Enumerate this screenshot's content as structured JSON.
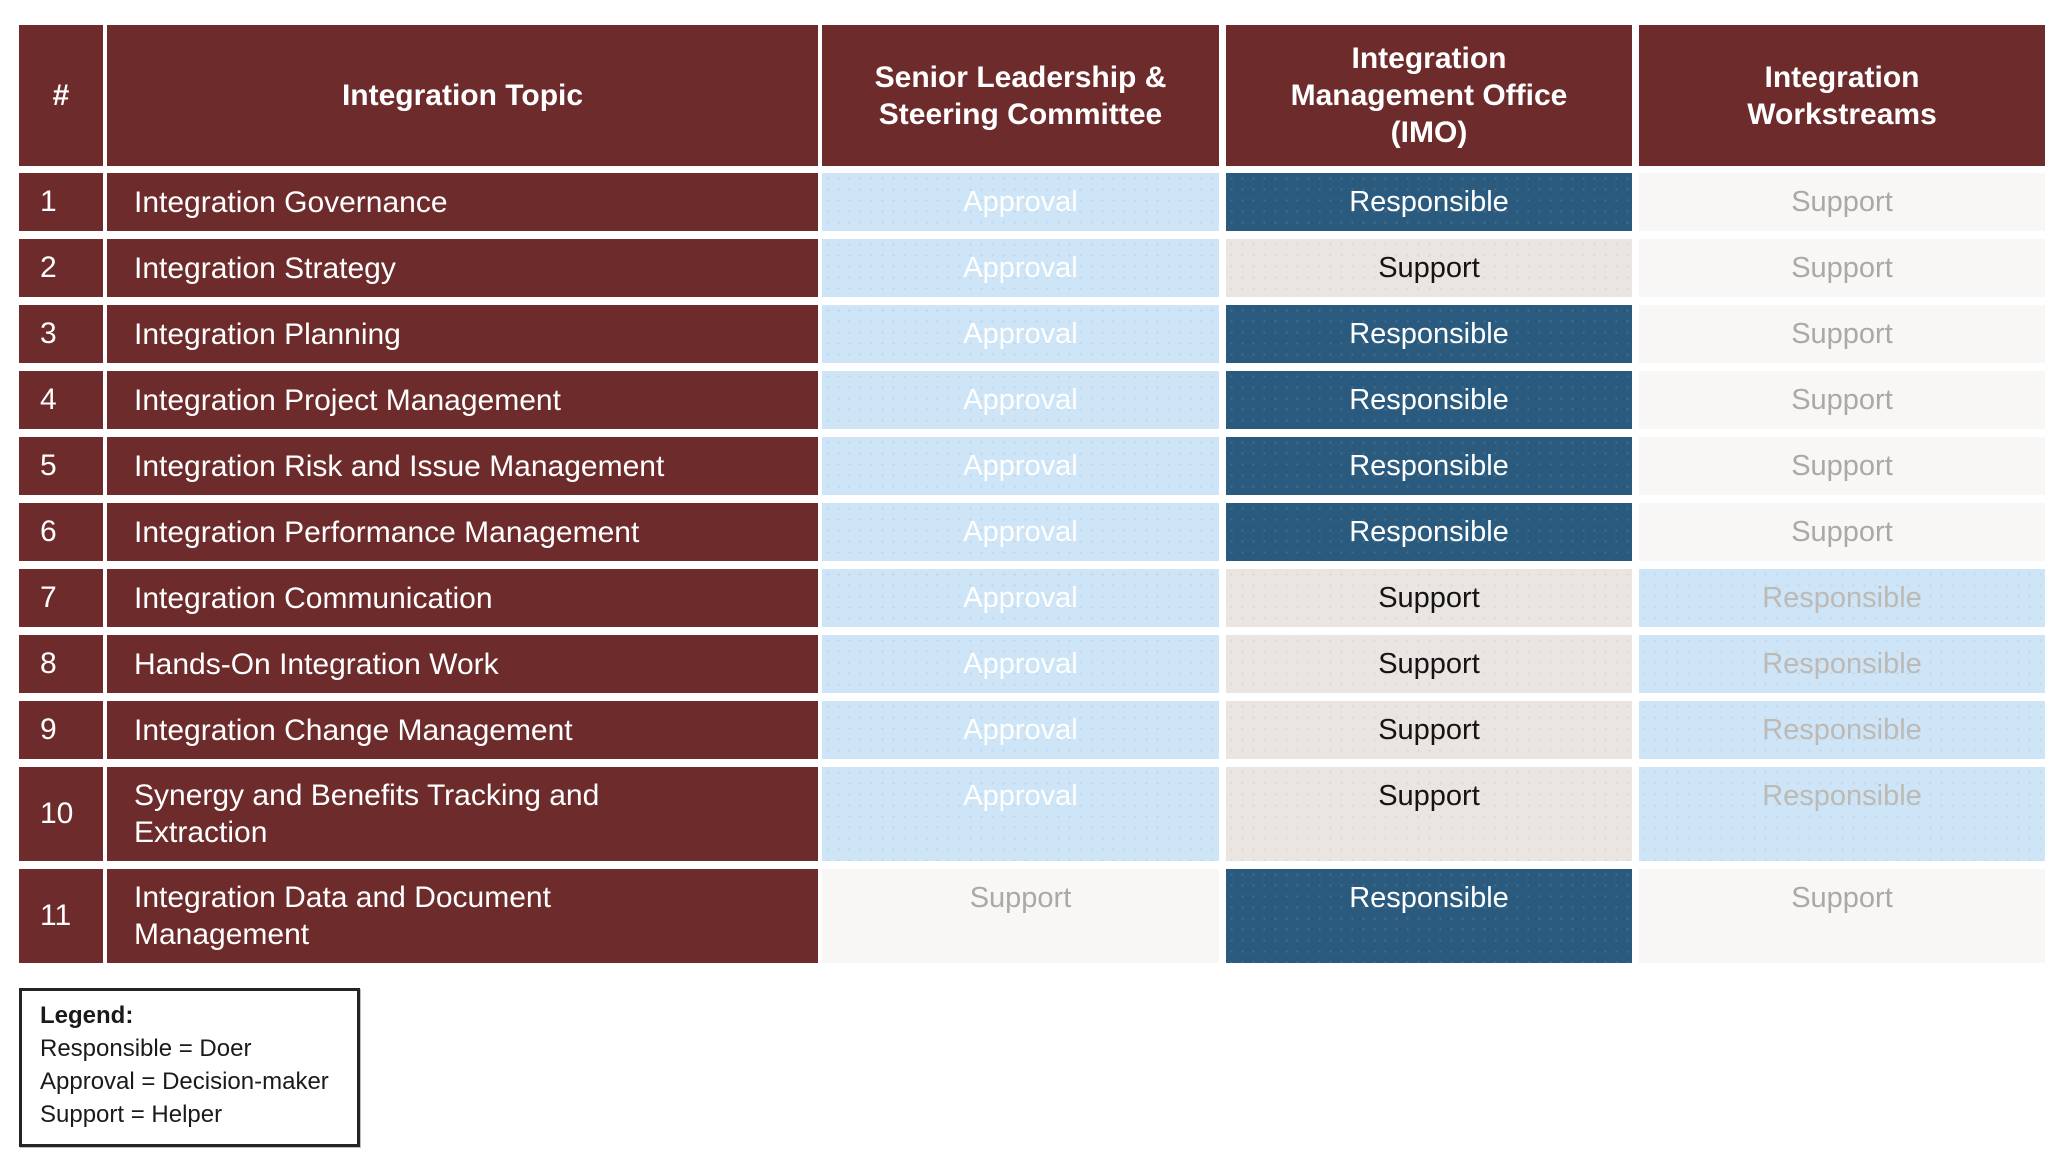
{
  "table": {
    "columns": [
      {
        "key": "num",
        "label": "#"
      },
      {
        "key": "topic",
        "label": "Integration Topic"
      },
      {
        "key": "slsc",
        "label": "Senior Leadership & Steering Committee"
      },
      {
        "key": "imo",
        "label": "Integration Management Office (IMO)"
      },
      {
        "key": "ws",
        "label": "Integration Workstreams"
      }
    ],
    "rows": [
      {
        "num": "1",
        "topic": "Integration Governance",
        "slsc": {
          "label": "Approval",
          "variant": "approval"
        },
        "imo": {
          "label": "Responsible",
          "variant": "responsible"
        },
        "ws": {
          "label": "Support",
          "variant": "support-muted"
        }
      },
      {
        "num": "2",
        "topic": "Integration Strategy",
        "slsc": {
          "label": "Approval",
          "variant": "approval"
        },
        "imo": {
          "label": "Support",
          "variant": "support"
        },
        "ws": {
          "label": "Support",
          "variant": "support-muted"
        }
      },
      {
        "num": "3",
        "topic": "Integration Planning",
        "slsc": {
          "label": "Approval",
          "variant": "approval"
        },
        "imo": {
          "label": "Responsible",
          "variant": "responsible"
        },
        "ws": {
          "label": "Support",
          "variant": "support-muted"
        }
      },
      {
        "num": "4",
        "topic": "Integration Project Management",
        "slsc": {
          "label": "Approval",
          "variant": "approval"
        },
        "imo": {
          "label": "Responsible",
          "variant": "responsible"
        },
        "ws": {
          "label": "Support",
          "variant": "support-muted"
        }
      },
      {
        "num": "5",
        "topic": "Integration Risk and Issue Management",
        "slsc": {
          "label": "Approval",
          "variant": "approval"
        },
        "imo": {
          "label": "Responsible",
          "variant": "responsible"
        },
        "ws": {
          "label": "Support",
          "variant": "support-muted"
        }
      },
      {
        "num": "6",
        "topic": "Integration Performance Management",
        "slsc": {
          "label": "Approval",
          "variant": "approval"
        },
        "imo": {
          "label": "Responsible",
          "variant": "responsible"
        },
        "ws": {
          "label": "Support",
          "variant": "support-muted"
        }
      },
      {
        "num": "7",
        "topic": "Integration Communication",
        "slsc": {
          "label": "Approval",
          "variant": "approval"
        },
        "imo": {
          "label": "Support",
          "variant": "support"
        },
        "ws": {
          "label": "Responsible",
          "variant": "responsible-muted"
        }
      },
      {
        "num": "8",
        "topic": "Hands-On Integration Work",
        "slsc": {
          "label": "Approval",
          "variant": "approval"
        },
        "imo": {
          "label": "Support",
          "variant": "support"
        },
        "ws": {
          "label": "Responsible",
          "variant": "responsible-muted"
        }
      },
      {
        "num": "9",
        "topic": "Integration Change Management",
        "slsc": {
          "label": "Approval",
          "variant": "approval"
        },
        "imo": {
          "label": "Support",
          "variant": "support"
        },
        "ws": {
          "label": "Responsible",
          "variant": "responsible-muted"
        }
      },
      {
        "num": "10",
        "topic": "Synergy and Benefits Tracking and Extraction",
        "slsc": {
          "label": "Approval",
          "variant": "approval"
        },
        "imo": {
          "label": "Support",
          "variant": "support"
        },
        "ws": {
          "label": "Responsible",
          "variant": "responsible-muted"
        }
      },
      {
        "num": "11",
        "topic": "Integration Data and Document Management",
        "slsc": {
          "label": "Support",
          "variant": "support-muted"
        },
        "imo": {
          "label": "Responsible",
          "variant": "responsible"
        },
        "ws": {
          "label": "Support",
          "variant": "support-muted"
        }
      }
    ]
  },
  "legend": {
    "title": "Legend:",
    "items": [
      "Responsible = Doer",
      "Approval = Decision-maker",
      "Support = Helper"
    ]
  },
  "colors": {
    "header_maroon": "#6E2B2B",
    "approval_blue": "#CDE5F6",
    "responsible_dark_blue": "#2A5B7F",
    "support_beige": "#EAE5E1",
    "support_off_white": "#F9F6F6",
    "muted_gray_text": "#ABA8A8",
    "white_text": "#FFFFFF"
  }
}
